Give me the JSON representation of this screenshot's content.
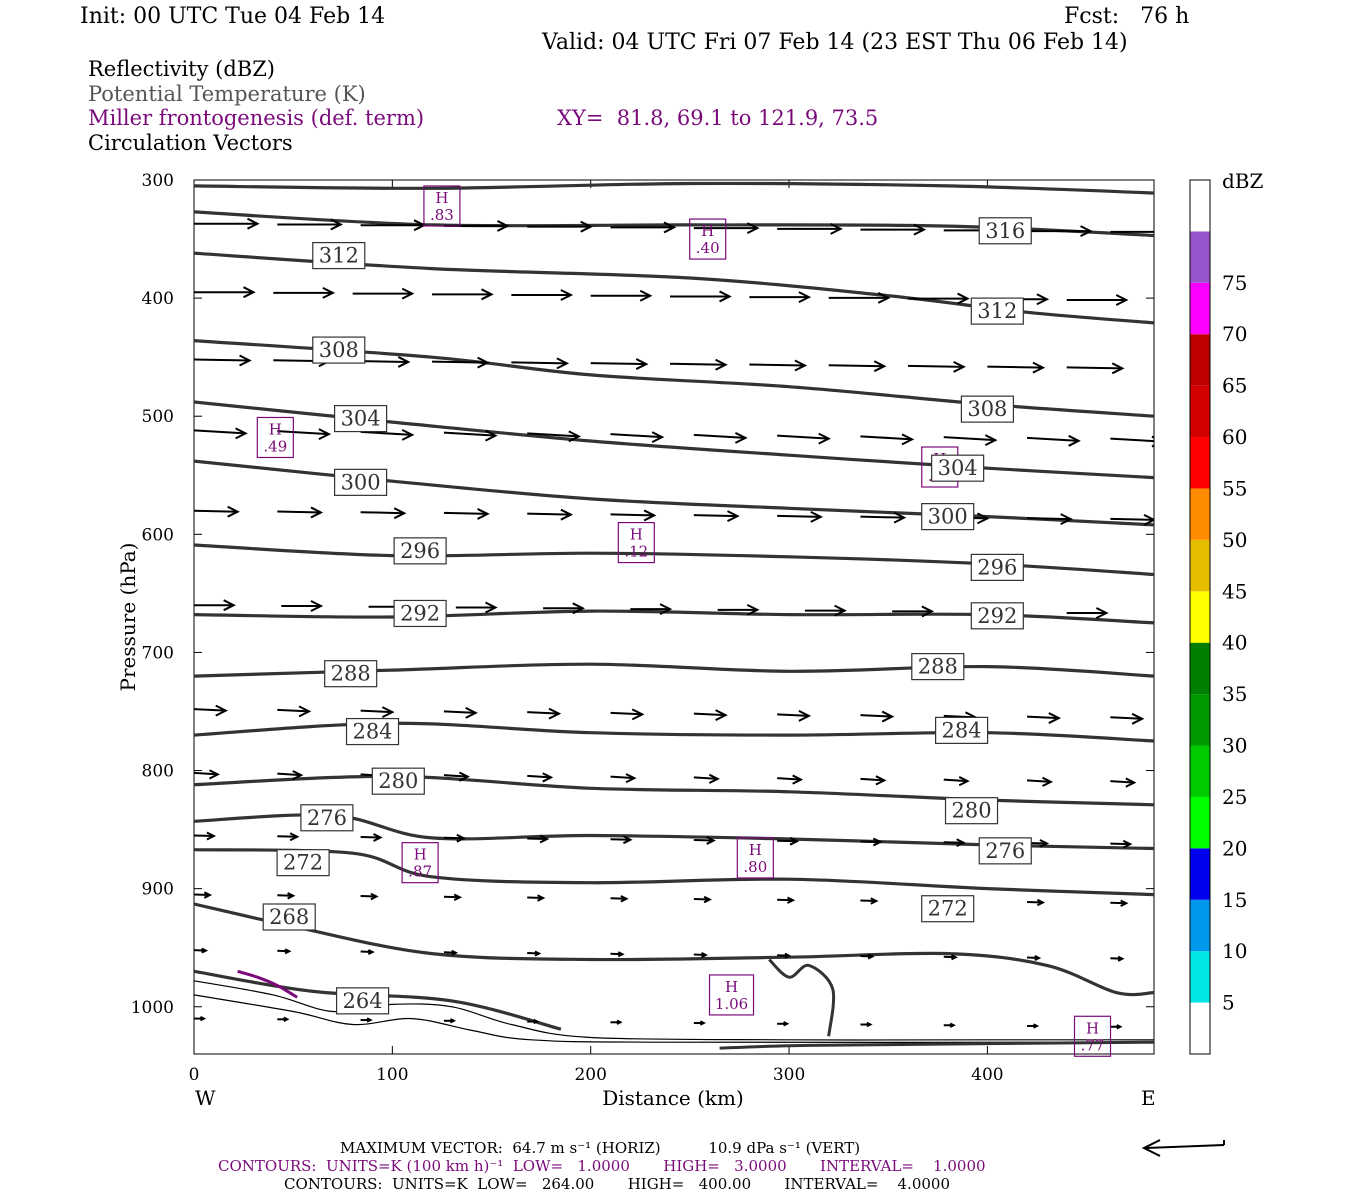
{
  "header": {
    "init": "Init: 00 UTC Tue 04 Feb 14",
    "fcst": "Fcst:   76 h",
    "valid": "Valid: 04 UTC Fri 07 Feb 14 (23 EST Thu 06 Feb 14)"
  },
  "legend": {
    "line1": "Reflectivity (dBZ)",
    "line2": "Potential Temperature (K)",
    "line3": "Miller frontogenesis (def. term)",
    "xy": "XY=  81.8, 69.1 to 121.9, 73.5",
    "line4": "Circulation Vectors"
  },
  "colors": {
    "theta": "#333333",
    "frontogenesis": "#7a0a7a",
    "vectors": "#000000"
  },
  "footer": {
    "max_vector": "MAXIMUM VECTOR:  64.7 m s⁻¹ (HORIZ)          10.9 dPa s⁻¹ (VERT)",
    "contours_fg": "CONTOURS:  UNITS=K (100 km h)⁻¹  LOW=   1.0000       HIGH=   3.0000       INTERVAL=    1.0000",
    "contours_theta": "CONTOURS:  UNITS=K  LOW=   264.00       HIGH=   400.00       INTERVAL=    4.0000"
  },
  "chart_data": {
    "type": "line",
    "title": "",
    "xlabel": "Distance (km)",
    "ylabel": "Pressure (hPa)",
    "xlim": [
      0,
      484
    ],
    "ylim": [
      1040,
      300
    ],
    "y_reversed": true,
    "x_ticks": [
      0,
      100,
      200,
      300,
      400
    ],
    "y_ticks": [
      300,
      400,
      500,
      600,
      700,
      800,
      900,
      1000
    ],
    "x_end_labels": {
      "left": "W",
      "right": "E"
    },
    "colorbar": {
      "title": "dBZ",
      "levels": [
        "5",
        "10",
        "15",
        "20",
        "25",
        "30",
        "35",
        "40",
        "45",
        "50",
        "55",
        "60",
        "65",
        "70",
        "75"
      ],
      "colors": [
        "#ffffff",
        "#00e5e5",
        "#0099ee",
        "#0000ee",
        "#00ff00",
        "#00cc00",
        "#009900",
        "#008000",
        "#ffff00",
        "#e6bc00",
        "#ff8c00",
        "#ff0000",
        "#d40000",
        "#bf0000",
        "#ff00ff",
        "#9955cc",
        "#ffffff"
      ]
    },
    "theta_contours": [
      {
        "level": "316",
        "label_at": [
          409,
          343
        ],
        "points": [
          [
            0,
            305
          ],
          [
            120,
            307
          ],
          [
            250,
            303
          ],
          [
            380,
            305
          ],
          [
            484,
            311
          ]
        ]
      },
      {
        "level": "312",
        "label_at": [
          73,
          364
        ],
        "points": [
          [
            0,
            327
          ],
          [
            120,
            338
          ],
          [
            250,
            338
          ],
          [
            380,
            339
          ],
          [
            484,
            347
          ]
        ]
      },
      {
        "level": "312",
        "label_at": [
          405,
          411
        ],
        "points": [
          [
            0,
            362
          ],
          [
            120,
            375
          ],
          [
            250,
            383
          ],
          [
            350,
            398
          ],
          [
            420,
            412
          ],
          [
            484,
            421
          ]
        ]
      },
      {
        "level": "308",
        "label_at": [
          73,
          444
        ],
        "points": [
          [
            0,
            436
          ],
          [
            120,
            450
          ],
          [
            200,
            465
          ],
          [
            300,
            475
          ],
          [
            400,
            490
          ],
          [
            484,
            500
          ]
        ]
      },
      {
        "level": "308",
        "label_at": [
          400,
          494
        ],
        "points": [
          [
            0,
            436
          ],
          [
            120,
            450
          ],
          [
            200,
            465
          ],
          [
            300,
            475
          ],
          [
            400,
            490
          ],
          [
            484,
            500
          ]
        ]
      },
      {
        "level": "304",
        "label_at": [
          84,
          502
        ],
        "points": [
          [
            0,
            488
          ],
          [
            100,
            505
          ],
          [
            200,
            521
          ],
          [
            300,
            533
          ],
          [
            400,
            544
          ],
          [
            484,
            552
          ]
        ]
      },
      {
        "level": "304",
        "label_at": [
          385,
          544
        ],
        "points": [
          [
            0,
            488
          ],
          [
            100,
            505
          ],
          [
            200,
            521
          ],
          [
            300,
            533
          ],
          [
            400,
            544
          ],
          [
            484,
            552
          ]
        ]
      },
      {
        "level": "300",
        "label_at": [
          84,
          556
        ],
        "points": [
          [
            0,
            538
          ],
          [
            100,
            555
          ],
          [
            200,
            570
          ],
          [
            300,
            578
          ],
          [
            400,
            585
          ],
          [
            484,
            592
          ]
        ]
      },
      {
        "level": "300",
        "label_at": [
          380,
          585
        ],
        "points": [
          [
            0,
            538
          ],
          [
            100,
            555
          ],
          [
            200,
            570
          ],
          [
            300,
            578
          ],
          [
            400,
            585
          ],
          [
            484,
            592
          ]
        ]
      },
      {
        "level": "296",
        "label_at": [
          114,
          614
        ],
        "points": [
          [
            0,
            609
          ],
          [
            100,
            618
          ],
          [
            200,
            616
          ],
          [
            300,
            619
          ],
          [
            400,
            625
          ],
          [
            484,
            634
          ]
        ]
      },
      {
        "level": "296",
        "label_at": [
          405,
          628
        ],
        "points": [
          [
            0,
            609
          ],
          [
            100,
            618
          ],
          [
            200,
            616
          ],
          [
            300,
            619
          ],
          [
            400,
            625
          ],
          [
            484,
            634
          ]
        ]
      },
      {
        "level": "292",
        "label_at": [
          114,
          667
        ],
        "points": [
          [
            0,
            668
          ],
          [
            100,
            670
          ],
          [
            200,
            665
          ],
          [
            300,
            668
          ],
          [
            400,
            668
          ],
          [
            484,
            675
          ]
        ]
      },
      {
        "level": "292",
        "label_at": [
          405,
          669
        ],
        "points": [
          [
            0,
            668
          ],
          [
            100,
            670
          ],
          [
            200,
            665
          ],
          [
            300,
            668
          ],
          [
            400,
            668
          ],
          [
            484,
            675
          ]
        ]
      },
      {
        "level": "288",
        "label_at": [
          79,
          718
        ],
        "points": [
          [
            0,
            720
          ],
          [
            100,
            715
          ],
          [
            200,
            710
          ],
          [
            300,
            716
          ],
          [
            400,
            712
          ],
          [
            484,
            720
          ]
        ]
      },
      {
        "level": "288",
        "label_at": [
          375,
          712
        ],
        "points": [
          [
            0,
            720
          ],
          [
            100,
            715
          ],
          [
            200,
            710
          ],
          [
            300,
            716
          ],
          [
            400,
            712
          ],
          [
            484,
            720
          ]
        ]
      },
      {
        "level": "284",
        "label_at": [
          90,
          767
        ],
        "points": [
          [
            0,
            770
          ],
          [
            100,
            760
          ],
          [
            200,
            768
          ],
          [
            300,
            770
          ],
          [
            400,
            768
          ],
          [
            484,
            775
          ]
        ]
      },
      {
        "level": "284",
        "label_at": [
          387,
          766
        ],
        "points": [
          [
            0,
            770
          ],
          [
            100,
            760
          ],
          [
            200,
            768
          ],
          [
            300,
            770
          ],
          [
            400,
            768
          ],
          [
            484,
            775
          ]
        ]
      },
      {
        "level": "280",
        "label_at": [
          103,
          809
        ],
        "points": [
          [
            0,
            812
          ],
          [
            100,
            805
          ],
          [
            200,
            815
          ],
          [
            300,
            818
          ],
          [
            400,
            825
          ],
          [
            484,
            829
          ]
        ]
      },
      {
        "level": "280",
        "label_at": [
          392,
          834
        ],
        "points": [
          [
            0,
            812
          ],
          [
            100,
            805
          ],
          [
            200,
            815
          ],
          [
            300,
            818
          ],
          [
            400,
            825
          ],
          [
            484,
            829
          ]
        ]
      },
      {
        "level": "276",
        "label_at": [
          67,
          840
        ],
        "points": [
          [
            0,
            843
          ],
          [
            70,
            838
          ],
          [
            120,
            857
          ],
          [
            200,
            855
          ],
          [
            300,
            858
          ],
          [
            400,
            863
          ],
          [
            484,
            866
          ]
        ]
      },
      {
        "level": "276",
        "label_at": [
          409,
          868
        ],
        "points": [
          [
            0,
            843
          ],
          [
            70,
            838
          ],
          [
            120,
            857
          ],
          [
            200,
            855
          ],
          [
            300,
            858
          ],
          [
            400,
            863
          ],
          [
            484,
            866
          ]
        ]
      },
      {
        "level": "272",
        "label_at": [
          55,
          878
        ],
        "points": [
          [
            0,
            867
          ],
          [
            80,
            870
          ],
          [
            120,
            890
          ],
          [
            200,
            895
          ],
          [
            300,
            892
          ],
          [
            400,
            900
          ],
          [
            484,
            905
          ]
        ]
      },
      {
        "level": "272",
        "label_at": [
          380,
          917
        ],
        "points": [
          [
            0,
            867
          ],
          [
            80,
            870
          ],
          [
            120,
            890
          ],
          [
            200,
            895
          ],
          [
            300,
            892
          ],
          [
            400,
            900
          ],
          [
            484,
            905
          ]
        ]
      },
      {
        "level": "268",
        "label_at": [
          48,
          924
        ],
        "points": [
          [
            0,
            913
          ],
          [
            50,
            932
          ],
          [
            120,
            955
          ],
          [
            200,
            960
          ],
          [
            300,
            958
          ],
          [
            380,
            955
          ],
          [
            430,
            965
          ],
          [
            465,
            988
          ],
          [
            484,
            988
          ]
        ]
      },
      {
        "level": "264",
        "label_at": [
          85,
          995
        ],
        "points": [
          [
            0,
            970
          ],
          [
            60,
            987
          ],
          [
            130,
            995
          ],
          [
            185,
            1019
          ]
        ]
      }
    ],
    "frontogenesis_maxima": [
      {
        "label": "H",
        "value": ".83",
        "x": 125,
        "p": 322
      },
      {
        "label": "H",
        "value": ".40",
        "x": 259,
        "p": 350
      },
      {
        "label": "H",
        "value": ".49",
        "x": 41,
        "p": 518
      },
      {
        "label": "H",
        "value": ".33",
        "x": 376,
        "p": 543
      },
      {
        "label": "H",
        "value": ".12",
        "x": 223,
        "p": 607
      },
      {
        "label": "H",
        "value": ".87",
        "x": 114,
        "p": 878
      },
      {
        "label": "H",
        "value": ".80",
        "x": 283,
        "p": 874
      },
      {
        "label": "H",
        "value": "1.06",
        "x": 271,
        "p": 990
      },
      {
        "label": "H",
        "value": ".77",
        "x": 453,
        "p": 1025
      }
    ]
  }
}
